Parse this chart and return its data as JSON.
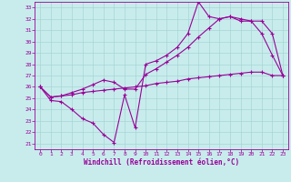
{
  "xlabel": "Windchill (Refroidissement éolien,°C)",
  "background_color": "#c8ecec",
  "line_color": "#990099",
  "xlim": [
    -0.5,
    23.5
  ],
  "ylim": [
    20.5,
    33.5
  ],
  "xticks": [
    0,
    1,
    2,
    3,
    4,
    5,
    6,
    7,
    8,
    9,
    10,
    11,
    12,
    13,
    14,
    15,
    16,
    17,
    18,
    19,
    20,
    21,
    22,
    23
  ],
  "yticks": [
    21,
    22,
    23,
    24,
    25,
    26,
    27,
    28,
    29,
    30,
    31,
    32,
    33
  ],
  "series1_x": [
    0,
    1,
    2,
    3,
    4,
    5,
    6,
    7,
    8,
    9,
    10,
    11,
    12,
    13,
    14,
    15,
    16,
    17,
    18,
    19,
    20,
    21,
    22,
    23
  ],
  "series1_y": [
    26.0,
    24.8,
    24.7,
    24.0,
    23.2,
    22.8,
    21.8,
    21.1,
    25.3,
    22.4,
    28.0,
    28.3,
    28.8,
    29.5,
    30.7,
    33.5,
    32.2,
    32.0,
    32.2,
    31.8,
    31.8,
    30.7,
    28.8,
    27.0
  ],
  "series2_x": [
    0,
    1,
    2,
    3,
    4,
    5,
    6,
    7,
    8,
    9,
    10,
    11,
    12,
    13,
    14,
    15,
    16,
    17,
    18,
    19,
    20,
    21,
    22,
    23
  ],
  "series2_y": [
    26.0,
    25.1,
    25.2,
    25.3,
    25.5,
    25.6,
    25.7,
    25.8,
    25.9,
    26.0,
    26.1,
    26.3,
    26.4,
    26.5,
    26.7,
    26.8,
    26.9,
    27.0,
    27.1,
    27.2,
    27.3,
    27.3,
    27.0,
    27.0
  ],
  "series3_x": [
    0,
    1,
    2,
    3,
    4,
    5,
    6,
    7,
    8,
    9,
    10,
    11,
    12,
    13,
    14,
    15,
    16,
    17,
    18,
    19,
    20,
    21,
    22,
    23
  ],
  "series3_y": [
    26.0,
    25.1,
    25.2,
    25.5,
    25.8,
    26.2,
    26.6,
    26.4,
    25.8,
    25.8,
    27.1,
    27.6,
    28.2,
    28.8,
    29.5,
    30.4,
    31.2,
    32.0,
    32.2,
    32.0,
    31.8,
    31.8,
    30.7,
    27.0
  ]
}
